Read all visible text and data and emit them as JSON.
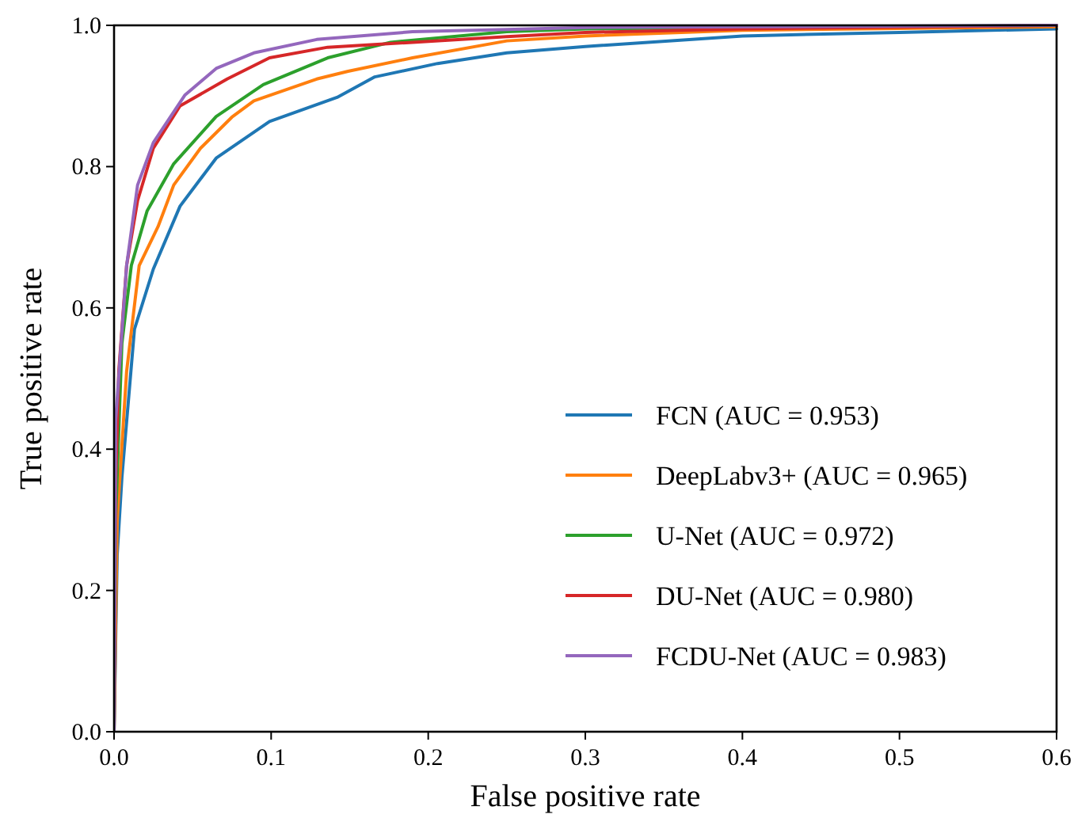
{
  "chart_data": {
    "type": "line",
    "xlabel": "False positive rate",
    "ylabel": "True positive rate",
    "xlim": [
      0,
      0.6
    ],
    "ylim": [
      0,
      1
    ],
    "xticks": [
      {
        "value": 0,
        "label": "0.0"
      },
      0.1,
      0.2,
      0.3,
      0.4,
      0.5,
      0.6
    ],
    "yticks": [
      {
        "value": 0,
        "label": "0.0"
      },
      0.2,
      0.4,
      0.6,
      0.8,
      {
        "value": 1,
        "label": "1.0"
      }
    ],
    "grid": false,
    "legend": "bottom right",
    "line_style": "solid",
    "marker": "none",
    "series": [
      {
        "name": "FCN (AUC = 0.953)",
        "color": "#1f77b4",
        "x": [
          0,
          0.002,
          0.005,
          0.013,
          0.025,
          0.042,
          0.065,
          0.099,
          0.142,
          0.166,
          0.206,
          0.25,
          0.3,
          0.4,
          0.5,
          0.6
        ],
        "values": [
          0,
          0.25,
          0.36,
          0.57,
          0.655,
          0.744,
          0.812,
          0.864,
          0.898,
          0.927,
          0.946,
          0.961,
          0.97,
          0.985,
          0.99,
          0.995
        ]
      },
      {
        "name": "DeepLabv3+ (AUC = 0.965)",
        "color": "#ff7f0e",
        "x": [
          0,
          0.002,
          0.008,
          0.016,
          0.028,
          0.038,
          0.055,
          0.075,
          0.089,
          0.129,
          0.149,
          0.19,
          0.25,
          0.3,
          0.4,
          0.6
        ],
        "values": [
          0,
          0.3,
          0.51,
          0.66,
          0.715,
          0.774,
          0.826,
          0.87,
          0.893,
          0.924,
          0.935,
          0.954,
          0.978,
          0.985,
          0.993,
          0.998
        ]
      },
      {
        "name": "U-Net (AUC = 0.972)",
        "color": "#2ca02c",
        "x": [
          0,
          0.001,
          0.005,
          0.011,
          0.021,
          0.038,
          0.065,
          0.095,
          0.136,
          0.176,
          0.25,
          0.3,
          0.6
        ],
        "values": [
          0,
          0.3,
          0.55,
          0.66,
          0.737,
          0.804,
          0.871,
          0.916,
          0.954,
          0.976,
          0.991,
          0.995,
          1.0
        ]
      },
      {
        "name": "DU-Net (AUC = 0.980)",
        "color": "#d62728",
        "x": [
          0,
          0.001,
          0.003,
          0.008,
          0.015,
          0.025,
          0.042,
          0.072,
          0.099,
          0.136,
          0.19,
          0.25,
          0.3,
          0.4,
          0.6
        ],
        "values": [
          0,
          0.35,
          0.51,
          0.66,
          0.752,
          0.826,
          0.886,
          0.924,
          0.954,
          0.969,
          0.976,
          0.984,
          0.99,
          0.995,
          1.0
        ]
      },
      {
        "name": "FCDU-Net (AUC = 0.983)",
        "color": "#9467bd",
        "x": [
          0,
          0.001,
          0.008,
          0.015,
          0.025,
          0.045,
          0.065,
          0.089,
          0.129,
          0.19,
          0.25,
          0.3,
          0.6
        ],
        "values": [
          0,
          0.44,
          0.66,
          0.774,
          0.834,
          0.901,
          0.939,
          0.961,
          0.98,
          0.991,
          0.994,
          0.997,
          1.0
        ]
      }
    ]
  }
}
